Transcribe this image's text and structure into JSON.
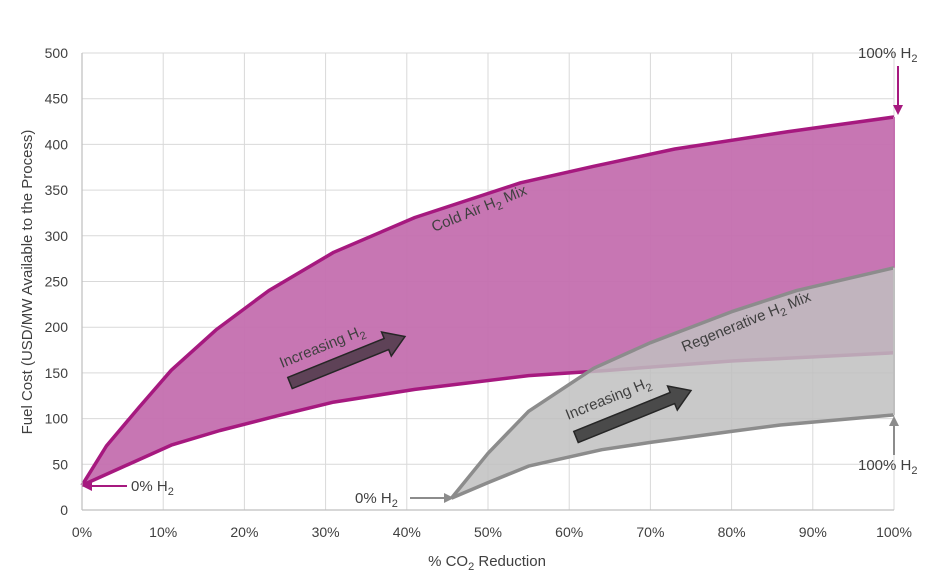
{
  "chart_data": {
    "type": "area",
    "xlabel": "% CO2 Reduction",
    "xlabel_parts": [
      "% CO",
      "2",
      " Reduction"
    ],
    "ylabel": "Fuel Cost (USD/MW Available to the Process)",
    "xlim": [
      0,
      100
    ],
    "ylim": [
      0,
      500
    ],
    "x_ticks": [
      0,
      10,
      20,
      30,
      40,
      50,
      60,
      70,
      80,
      90,
      100
    ],
    "x_tick_labels": [
      "0%",
      "10%",
      "20%",
      "30%",
      "40%",
      "50%",
      "60%",
      "70%",
      "80%",
      "90%",
      "100%"
    ],
    "y_ticks": [
      0,
      50,
      100,
      150,
      200,
      250,
      300,
      350,
      400,
      450,
      500
    ],
    "y_tick_labels": [
      "0",
      "50",
      "100",
      "150",
      "200",
      "250",
      "300",
      "350",
      "400",
      "450",
      "500"
    ],
    "grid": true,
    "bands": [
      {
        "name": "Cold Air H2 Mix",
        "color": "#A6197F",
        "fill": "#C46FAF",
        "upper": [
          [
            0,
            27
          ],
          [
            3,
            70
          ],
          [
            7,
            112
          ],
          [
            11,
            153
          ],
          [
            16.5,
            197
          ],
          [
            23,
            240
          ],
          [
            31,
            282
          ],
          [
            41,
            320
          ],
          [
            54,
            358
          ],
          [
            63,
            376
          ],
          [
            73,
            395
          ],
          [
            87,
            414
          ],
          [
            100,
            430
          ]
        ],
        "lower": [
          [
            0,
            27
          ],
          [
            5,
            47
          ],
          [
            11,
            71
          ],
          [
            17,
            87
          ],
          [
            24,
            103
          ],
          [
            31,
            118
          ],
          [
            41,
            132
          ],
          [
            55,
            147
          ],
          [
            65,
            153
          ],
          [
            80,
            163
          ],
          [
            100,
            172
          ]
        ]
      },
      {
        "name": "Regenerative H2 Mix",
        "color": "#8C8C8C",
        "fill": "#BFBFBF",
        "upper": [
          [
            45.5,
            13
          ],
          [
            50,
            62
          ],
          [
            55,
            108
          ],
          [
            63,
            155
          ],
          [
            70,
            183
          ],
          [
            80,
            217
          ],
          [
            88,
            240
          ],
          [
            100,
            265
          ]
        ],
        "lower": [
          [
            45.5,
            13
          ],
          [
            50,
            30
          ],
          [
            55,
            48
          ],
          [
            64,
            66
          ],
          [
            70,
            74
          ],
          [
            80,
            86
          ],
          [
            86,
            93
          ],
          [
            100,
            104
          ]
        ]
      }
    ],
    "annotations": {
      "cold_air_label": {
        "parts": [
          "Cold Air H",
          "2",
          " Mix"
        ]
      },
      "regen_label": {
        "parts": [
          "Regenerative H",
          "2",
          " Mix"
        ]
      },
      "increasing_1": {
        "parts": [
          "Increasing H",
          "2"
        ]
      },
      "increasing_2": {
        "parts": [
          "Increasing H",
          "2"
        ]
      },
      "zero_h2_left": {
        "parts": [
          "0% H",
          "2"
        ]
      },
      "zero_h2_mid": {
        "parts": [
          "0% H",
          "2"
        ]
      },
      "hundred_h2_top": {
        "parts": [
          "100% H",
          "2"
        ]
      },
      "hundred_h2_bottom": {
        "parts": [
          "100% H",
          "2"
        ]
      }
    }
  }
}
